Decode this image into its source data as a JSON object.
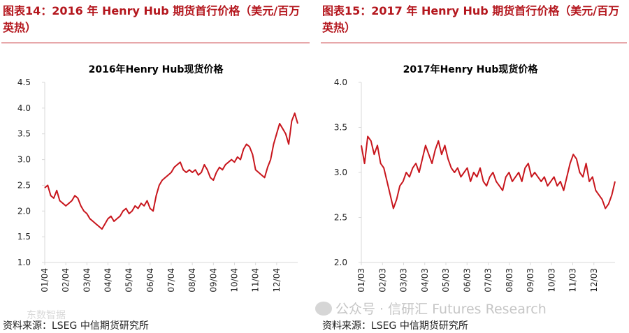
{
  "figures": [
    {
      "title": "图表14：2016 年 Henry Hub 期货首行价格（美元/百万英热）",
      "source": "资料来源：LSEG  中信期货研究所"
    },
    {
      "title": "图表15：2017 年 Henry Hub 期货首行价格（美元/百万英热）",
      "source": "资料来源：LSEG  中信期货研究所"
    }
  ],
  "watermark": "公众号 · 信研汇 Futures Research",
  "watermark2": "东数智据",
  "colors": {
    "line": "#c8161d",
    "title": "#b4161d",
    "axis": "#d9d9d9"
  },
  "chart_data": [
    {
      "type": "line",
      "title": "2016年Henry Hub现货价格",
      "xlabel": "",
      "ylabel": "",
      "ylim": [
        1.0,
        4.5
      ],
      "yticks": [
        "1.0",
        "1.5",
        "2.0",
        "2.5",
        "3.0",
        "3.5",
        "4.0",
        "4.5"
      ],
      "xticks": [
        "01/04",
        "02/04",
        "03/04",
        "04/04",
        "05/04",
        "06/04",
        "07/04",
        "08/04",
        "09/04",
        "10/04",
        "11/04",
        "12/04"
      ],
      "grid": false,
      "series": [
        {
          "values": [
            2.45,
            2.5,
            2.3,
            2.25,
            2.4,
            2.2,
            2.15,
            2.1,
            2.15,
            2.2,
            2.3,
            2.25,
            2.1,
            2.0,
            1.95,
            1.85,
            1.8,
            1.75,
            1.7,
            1.65,
            1.75,
            1.85,
            1.9,
            1.8,
            1.85,
            1.9,
            2.0,
            2.05,
            1.95,
            2.0,
            2.1,
            2.05,
            2.15,
            2.1,
            2.2,
            2.05,
            2.0,
            2.3,
            2.5,
            2.6,
            2.65,
            2.7,
            2.75,
            2.85,
            2.9,
            2.95,
            2.8,
            2.75,
            2.8,
            2.75,
            2.8,
            2.7,
            2.75,
            2.9,
            2.8,
            2.65,
            2.6,
            2.75,
            2.85,
            2.8,
            2.9,
            2.95,
            3.0,
            2.95,
            3.05,
            3.0,
            3.2,
            3.3,
            3.25,
            3.1,
            2.8,
            2.75,
            2.7,
            2.65,
            2.85,
            3.0,
            3.3,
            3.5,
            3.7,
            3.6,
            3.5,
            3.3,
            3.75,
            3.9,
            3.7
          ]
        }
      ]
    },
    {
      "type": "line",
      "title": "2017年Henry Hub现货价格",
      "xlabel": "",
      "ylabel": "",
      "ylim": [
        2.0,
        4.0
      ],
      "yticks": [
        "2.0",
        "2.5",
        "3.0",
        "3.5",
        "4.0"
      ],
      "xticks": [
        "01/03",
        "02/03",
        "03/03",
        "04/03",
        "05/03",
        "06/03",
        "07/03",
        "08/03",
        "09/03",
        "10/03",
        "11/03",
        "12/03"
      ],
      "grid": false,
      "series": [
        {
          "values": [
            3.3,
            3.1,
            3.4,
            3.35,
            3.2,
            3.3,
            3.1,
            3.05,
            2.9,
            2.75,
            2.6,
            2.7,
            2.85,
            2.9,
            3.0,
            2.95,
            3.05,
            3.1,
            3.0,
            3.15,
            3.3,
            3.2,
            3.1,
            3.25,
            3.35,
            3.2,
            3.3,
            3.15,
            3.05,
            3.0,
            3.05,
            2.95,
            3.0,
            3.05,
            2.9,
            3.0,
            2.95,
            3.05,
            2.9,
            2.85,
            2.95,
            3.0,
            2.9,
            2.85,
            2.8,
            2.95,
            3.0,
            2.9,
            2.95,
            3.0,
            2.9,
            3.05,
            3.1,
            2.95,
            3.0,
            2.95,
            2.9,
            2.95,
            2.85,
            2.9,
            2.95,
            2.85,
            2.9,
            2.8,
            2.95,
            3.1,
            3.2,
            3.15,
            3.0,
            2.95,
            3.1,
            2.9,
            2.95,
            2.8,
            2.75,
            2.7,
            2.6,
            2.65,
            2.75,
            2.9
          ]
        }
      ]
    }
  ]
}
